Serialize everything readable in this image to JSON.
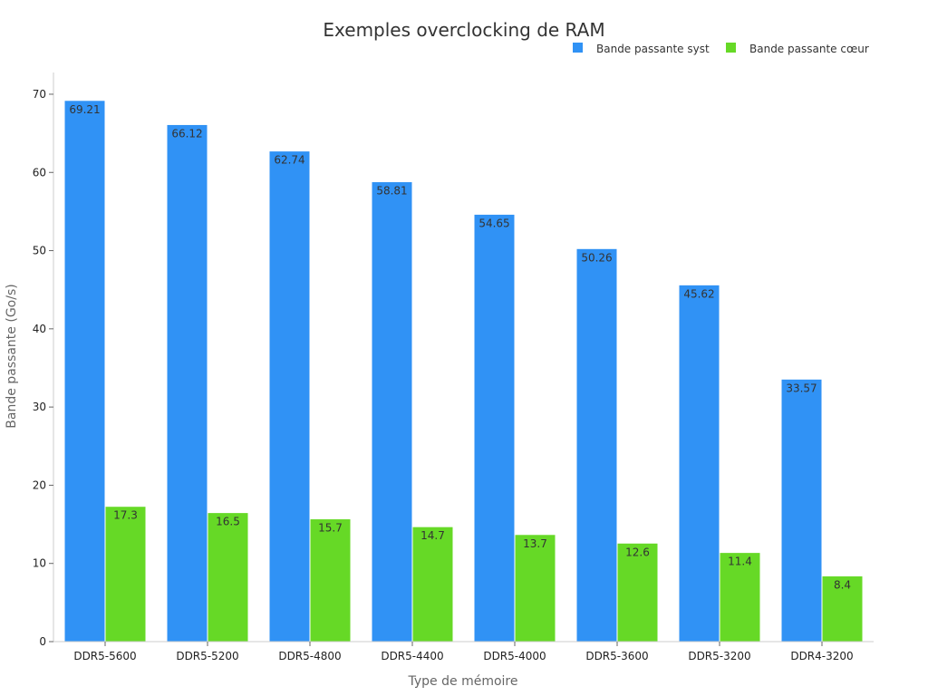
{
  "chart_data": {
    "type": "bar",
    "title": "Exemples overclocking de RAM",
    "xlabel": "Type de mémoire",
    "ylabel": "Bande passante (Go/s)",
    "ylim": [
      0,
      72
    ],
    "yticks": [
      0,
      10,
      20,
      30,
      40,
      50,
      60,
      70
    ],
    "grid": false,
    "legend_position": "top-right",
    "categories": [
      "DDR5-5600",
      "DDR5-5200",
      "DDR5-4800",
      "DDR5-4400",
      "DDR5-4000",
      "DDR5-3600",
      "DDR5-3200",
      "DDR4-3200"
    ],
    "series": [
      {
        "name": "Bande passante syst",
        "color": "#3092f5",
        "values": [
          69.21,
          66.12,
          62.74,
          58.81,
          54.65,
          50.26,
          45.62,
          33.57
        ],
        "labels": [
          "69.21",
          "66.12",
          "62.74",
          "58.81",
          "54.65",
          "50.26",
          "45.62",
          "33.57"
        ]
      },
      {
        "name": "Bande passante cœur",
        "color": "#66d926",
        "values": [
          17.3,
          16.5,
          15.7,
          14.7,
          13.7,
          12.6,
          11.4,
          8.4
        ],
        "labels": [
          "17.3",
          "16.5",
          "15.7",
          "14.7",
          "13.7",
          "12.6",
          "11.4",
          "8.4"
        ]
      }
    ]
  }
}
